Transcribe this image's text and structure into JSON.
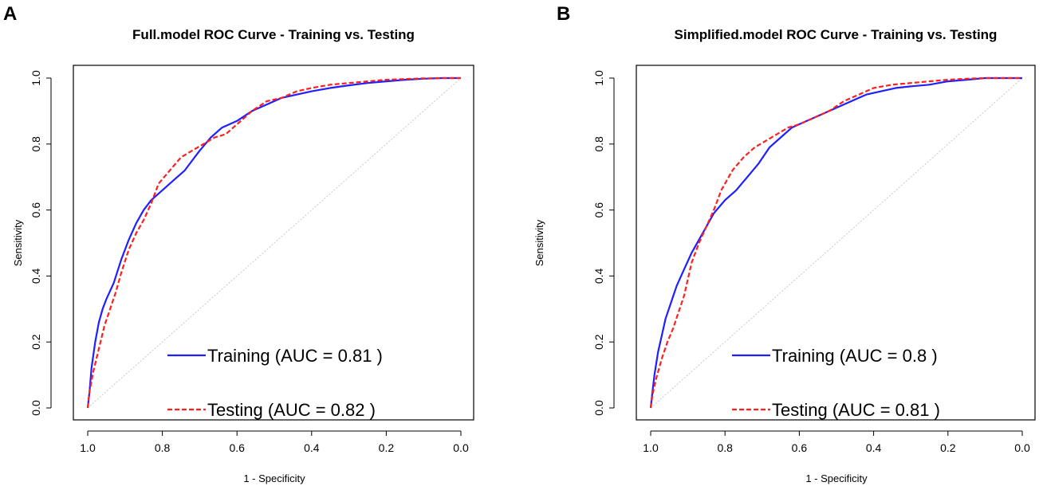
{
  "panels": [
    {
      "letter": "A",
      "chart_data": {
        "type": "line",
        "title": "Full.model ROC Curve - Training vs. Testing",
        "xlabel": "1 - Specificity",
        "ylabel": "Sensitivity",
        "xlim": [
          1.0,
          0.0
        ],
        "ylim": [
          0.0,
          1.0
        ],
        "xticks": [
          "1.0",
          "0.8",
          "0.6",
          "0.4",
          "0.2",
          "0.0"
        ],
        "yticks": [
          "0.0",
          "0.2",
          "0.4",
          "0.6",
          "0.8",
          "1.0"
        ],
        "legend_position": "bottom-right",
        "series": [
          {
            "name": "Training (AUC = 0.81 )",
            "color": "#1f1fff",
            "style": "solid",
            "x": [
              1.0,
              0.995,
              0.99,
              0.98,
              0.97,
              0.96,
              0.95,
              0.93,
              0.91,
              0.89,
              0.87,
              0.85,
              0.83,
              0.8,
              0.77,
              0.74,
              0.72,
              0.7,
              0.67,
              0.64,
              0.6,
              0.56,
              0.52,
              0.48,
              0.44,
              0.4,
              0.35,
              0.3,
              0.25,
              0.2,
              0.15,
              0.1,
              0.05,
              0.0
            ],
            "y": [
              0.0,
              0.05,
              0.12,
              0.2,
              0.26,
              0.3,
              0.33,
              0.38,
              0.45,
              0.51,
              0.56,
              0.6,
              0.63,
              0.66,
              0.69,
              0.72,
              0.75,
              0.78,
              0.82,
              0.85,
              0.87,
              0.9,
              0.92,
              0.94,
              0.95,
              0.96,
              0.97,
              0.978,
              0.985,
              0.99,
              0.995,
              0.998,
              1.0,
              1.0
            ]
          },
          {
            "name": "Testing (AUC = 0.82 )",
            "color": "#ff1f1f",
            "style": "dashed",
            "x": [
              1.0,
              0.995,
              0.985,
              0.97,
              0.955,
              0.94,
              0.925,
              0.91,
              0.89,
              0.87,
              0.85,
              0.83,
              0.81,
              0.78,
              0.75,
              0.72,
              0.69,
              0.66,
              0.63,
              0.6,
              0.56,
              0.52,
              0.48,
              0.44,
              0.4,
              0.35,
              0.3,
              0.25,
              0.2,
              0.15,
              0.1,
              0.05,
              0.0
            ],
            "y": [
              0.0,
              0.05,
              0.11,
              0.18,
              0.25,
              0.3,
              0.35,
              0.41,
              0.48,
              0.53,
              0.57,
              0.62,
              0.68,
              0.72,
              0.76,
              0.78,
              0.8,
              0.82,
              0.83,
              0.86,
              0.9,
              0.93,
              0.94,
              0.96,
              0.97,
              0.98,
              0.985,
              0.99,
              0.995,
              0.997,
              0.999,
              1.0,
              1.0
            ]
          }
        ]
      }
    },
    {
      "letter": "B",
      "chart_data": {
        "type": "line",
        "title": "Simplified.model ROC Curve - Training vs. Testing",
        "xlabel": "1 - Specificity",
        "ylabel": "Sensitivity",
        "xlim": [
          1.0,
          0.0
        ],
        "ylim": [
          0.0,
          1.0
        ],
        "xticks": [
          "1.0",
          "0.8",
          "0.6",
          "0.4",
          "0.2",
          "0.0"
        ],
        "yticks": [
          "0.0",
          "0.2",
          "0.4",
          "0.6",
          "0.8",
          "1.0"
        ],
        "legend_position": "bottom-right",
        "series": [
          {
            "name": "Training (AUC = 0.8 )",
            "color": "#1f1fff",
            "style": "solid",
            "x": [
              1.0,
              0.995,
              0.99,
              0.98,
              0.97,
              0.96,
              0.945,
              0.93,
              0.91,
              0.89,
              0.87,
              0.85,
              0.83,
              0.8,
              0.77,
              0.74,
              0.71,
              0.68,
              0.65,
              0.62,
              0.58,
              0.54,
              0.5,
              0.46,
              0.42,
              0.38,
              0.34,
              0.3,
              0.25,
              0.2,
              0.15,
              0.1,
              0.05,
              0.0
            ],
            "y": [
              0.0,
              0.05,
              0.1,
              0.17,
              0.22,
              0.27,
              0.32,
              0.37,
              0.42,
              0.47,
              0.51,
              0.55,
              0.59,
              0.63,
              0.66,
              0.7,
              0.74,
              0.79,
              0.82,
              0.85,
              0.87,
              0.89,
              0.91,
              0.93,
              0.95,
              0.96,
              0.97,
              0.975,
              0.98,
              0.99,
              0.995,
              1.0,
              1.0,
              1.0
            ]
          },
          {
            "name": "Testing (AUC = 0.81 )",
            "color": "#ff1f1f",
            "style": "dashed",
            "x": [
              1.0,
              0.995,
              0.985,
              0.97,
              0.955,
              0.94,
              0.925,
              0.91,
              0.89,
              0.87,
              0.85,
              0.83,
              0.81,
              0.78,
              0.75,
              0.72,
              0.69,
              0.66,
              0.63,
              0.6,
              0.56,
              0.52,
              0.48,
              0.44,
              0.4,
              0.35,
              0.3,
              0.25,
              0.2,
              0.15,
              0.1,
              0.05,
              0.0
            ],
            "y": [
              0.0,
              0.04,
              0.09,
              0.15,
              0.2,
              0.24,
              0.29,
              0.34,
              0.44,
              0.5,
              0.55,
              0.6,
              0.66,
              0.72,
              0.76,
              0.79,
              0.81,
              0.83,
              0.85,
              0.86,
              0.88,
              0.9,
              0.93,
              0.95,
              0.97,
              0.98,
              0.985,
              0.99,
              0.995,
              0.998,
              1.0,
              1.0,
              1.0
            ]
          }
        ]
      }
    }
  ]
}
